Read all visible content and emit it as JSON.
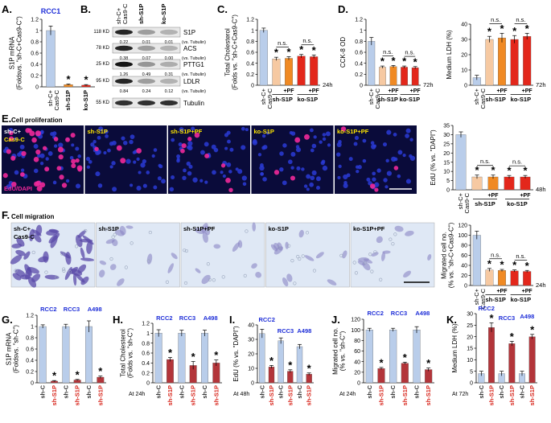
{
  "colors": {
    "blue_light": "#b9cdea",
    "blue_mid": "#7fa3d8",
    "orange_light": "#f6c9a2",
    "orange": "#f08a24",
    "red": "#e3271b",
    "dark_red": "#b3353a",
    "label_blue": "#1f2fd8",
    "label_red": "#d8261c",
    "micro_bg": "#0a0b3a",
    "migration_bg": "#dfe8f5"
  },
  "panels": {
    "A": {
      "letter": "A.",
      "cell_line": "RCC1",
      "ylabel": "S1P mRNA\n(Foldsvs. \"sh-C+Cas9-C\")",
      "categories": [
        "sh-C+\nCas9-C",
        "sh-S1P",
        "ko-S1P"
      ],
      "values": [
        1.0,
        0.04,
        0.03
      ],
      "errors": [
        0.08,
        0.01,
        0.01
      ],
      "ylim": [
        0,
        1.2
      ],
      "yticks": [
        "0",
        "0.2",
        "0.4",
        "0.6",
        "0.8",
        "1",
        "1.2"
      ],
      "stars": [
        "",
        "*",
        "*"
      ]
    },
    "B": {
      "letter": "B.",
      "headers": [
        "sh-C+\nCas9-C",
        "sh-S1P",
        "ko-S1P"
      ],
      "bands": [
        {
          "mw": "118 KD",
          "name": "S1P",
          "values": [
            "0.22",
            "0.01",
            "0.01"
          ],
          "note": "(vs. Tubulin)"
        },
        {
          "mw": "78 KD",
          "name": "ACS",
          "values": [
            "0.38",
            "0.07",
            "0.00"
          ],
          "note": "(vs. Tubulin)"
        },
        {
          "mw": "25 KD",
          "name": "PTTG1",
          "values": [
            "1.26",
            "0.49",
            "0.31"
          ],
          "note": "(vs. Tubulin)"
        },
        {
          "mw": "95 KD",
          "name": "LDLR",
          "values": [
            "0.84",
            "0.24",
            "0.12"
          ],
          "note": "(vs. Tubulin)"
        },
        {
          "mw": "55 KD",
          "name": "Tubulin",
          "values": [],
          "note": ""
        }
      ]
    },
    "C": {
      "letter": "C.",
      "ylabel": "Total Cholesterol\n(Folds vs. \"sh-C+Cas9-C\")",
      "values": [
        1.0,
        0.48,
        0.49,
        0.53,
        0.52
      ],
      "errors": [
        0.04,
        0.03,
        0.03,
        0.03,
        0.03
      ],
      "ylim": [
        0,
        1.2
      ],
      "yticks": [
        "0",
        "0.2",
        "0.4",
        "0.6",
        "0.8",
        "1",
        "1.2"
      ],
      "stars": [
        "",
        "*",
        "*",
        "*",
        "*"
      ],
      "ns": [
        "n.s.",
        "n.s."
      ],
      "pf": [
        "+PF",
        "+PF"
      ],
      "groups": [
        "sh-S1P",
        "ko-S1P"
      ],
      "first": "sh-C+\nCas9-C",
      "time": "24h"
    },
    "D1": {
      "letter": "D.",
      "ylabel": "CCK-8 OD",
      "values": [
        0.8,
        0.33,
        0.34,
        0.33,
        0.32
      ],
      "errors": [
        0.07,
        0.02,
        0.02,
        0.02,
        0.02
      ],
      "ylim": [
        0,
        1.2
      ],
      "yticks": [
        "0",
        "0.2",
        "0.4",
        "0.6",
        "0.8",
        "1",
        "1.2"
      ],
      "stars": [
        "",
        "*",
        "*",
        "*",
        "*"
      ],
      "ns": [
        "n.s.",
        "n.s."
      ],
      "pf": [
        "+PF",
        "+PF"
      ],
      "groups": [
        "sh-S1P",
        "ko-S1P"
      ],
      "first": "sh-C+\nCas9-C",
      "time": "72h"
    },
    "D2": {
      "ylabel": "Medium LDH (%)",
      "values": [
        5,
        30,
        31,
        30,
        32
      ],
      "errors": [
        1.5,
        2,
        3,
        2.5,
        2
      ],
      "ylim": [
        0,
        40
      ],
      "yticks": [
        "0",
        "10",
        "20",
        "30",
        "40"
      ],
      "stars": [
        "",
        "*",
        "*",
        "*",
        "*"
      ],
      "ns": [
        "n.s.",
        "n.s."
      ],
      "pf": [
        "+PF",
        "+PF"
      ],
      "groups": [
        "sh-S1P",
        "ko-S1P"
      ],
      "first": "sh-C+\nCas9-C",
      "time": "72h"
    },
    "E": {
      "letter": "E.",
      "title": "Cell proliferation",
      "images": [
        "sh-C+\nCas9-C",
        "sh-S1P",
        "sh-S1P+PF",
        "ko-S1P",
        "ko-S1P+PF"
      ],
      "stain": "EdU/DAPI",
      "chart": {
        "ylabel": "EdU (% vs. \"DAPI\")",
        "values": [
          30,
          7,
          7,
          7,
          7
        ],
        "errors": [
          1.5,
          1,
          1,
          0.8,
          0.8
        ],
        "ylim": [
          0,
          35
        ],
        "yticks": [
          "0",
          "5",
          "10",
          "15",
          "20",
          "25",
          "30",
          "35"
        ],
        "stars": [
          "",
          "*",
          "*",
          "*",
          "*"
        ],
        "ns": [
          "n.s.",
          "n.s."
        ],
        "pf": [
          "+PF",
          "+PF"
        ],
        "groups": [
          "sh-S1P",
          "ko-S1P"
        ],
        "first": "sh-C+\nCas9-C",
        "time": "48h"
      }
    },
    "F": {
      "letter": "F.",
      "title": "Cell migration",
      "images": [
        "sh-C+\nCas9-C",
        "sh-S1P",
        "sh-S1P+PF",
        "ko-S1P",
        "ko-S1P+PF"
      ],
      "chart": {
        "ylabel": "Migrated cell no.\n(% vs. \"sh-C+Cas9-C\")",
        "values": [
          100,
          31,
          30,
          29,
          28
        ],
        "errors": [
          8,
          3,
          2,
          2,
          2
        ],
        "ylim": [
          0,
          120
        ],
        "yticks": [
          "0",
          "20",
          "40",
          "60",
          "80",
          "100",
          "120"
        ],
        "stars": [
          "",
          "*",
          "*",
          "*",
          "*"
        ],
        "ns": [
          "n.s.",
          "n.s."
        ],
        "pf": [
          "+PF",
          "+PF"
        ],
        "groups": [
          "sh-S1P",
          "ko-S1P"
        ],
        "first": "sh-C+\nCas9-C",
        "time": "24h"
      }
    },
    "G": {
      "letter": "G.",
      "ylabel": "S1P mRNA\n(Foldsvs. \"sh-C\")",
      "lines": [
        "RCC2",
        "RCC3",
        "A498"
      ],
      "values": [
        1.0,
        0.03,
        1.0,
        0.05,
        1.0,
        0.1
      ],
      "errors": [
        0.03,
        0.01,
        0.04,
        0.01,
        0.1,
        0.02
      ],
      "ylim": [
        0,
        1.2
      ],
      "yticks": [
        "0",
        "0.2",
        "0.4",
        "0.6",
        "0.8",
        "1",
        "1.2"
      ],
      "stars": [
        "",
        "*",
        "",
        "*",
        "",
        "*"
      ],
      "xlabels": [
        "sh-C",
        "sh-S1P",
        "sh-C",
        "sh-S1P",
        "sh-C",
        "sh-S1P"
      ],
      "time": ""
    },
    "H": {
      "letter": "H.",
      "ylabel": "Total Cholesterol\n(Folds vs. \"sh-C\")",
      "lines": [
        "RCC2",
        "RCC3",
        "A498"
      ],
      "values": [
        1.0,
        0.47,
        1.0,
        0.35,
        1.0,
        0.4
      ],
      "errors": [
        0.07,
        0.04,
        0.06,
        0.08,
        0.06,
        0.06
      ],
      "ylim": [
        0,
        1.2
      ],
      "yticks": [
        "0",
        "0.2",
        "0.4",
        "0.6",
        "0.8",
        "1",
        "1.2"
      ],
      "stars": [
        "",
        "*",
        "",
        "*",
        "",
        "*"
      ],
      "xlabels": [
        "sh-C",
        "sh-S1P",
        "sh-C",
        "sh-S1P",
        "sh-C",
        "sh-S1P"
      ],
      "time": "At 24h"
    },
    "I": {
      "letter": "I.",
      "ylabel": "EdU (% vs. \"DAPI\")",
      "lines": [
        "RCC2",
        "RCC3",
        "A498"
      ],
      "values": [
        34,
        11,
        29,
        8,
        25,
        6
      ],
      "errors": [
        3,
        1,
        2,
        1,
        1.5,
        0.8
      ],
      "ylim": [
        0,
        40
      ],
      "yticks": [
        "0",
        "10",
        "20",
        "30",
        "40"
      ],
      "stars": [
        "",
        "*",
        "",
        "*",
        "",
        "*"
      ],
      "xlabels": [
        "sh-C",
        "sh-S1P",
        "sh-C",
        "sh-S1P",
        "sh-C",
        "sh-S1P"
      ],
      "time": "At 48h"
    },
    "J": {
      "letter": "J.",
      "ylabel": "Migrated cell no.\n(% vs. \"sh-C\")",
      "lines": [
        "RCC2",
        "RCC3",
        "A498"
      ],
      "values": [
        100,
        27,
        100,
        37,
        100,
        25
      ],
      "errors": [
        3,
        2,
        3,
        2,
        6,
        3
      ],
      "ylim": [
        0,
        120
      ],
      "yticks": [
        "0",
        "20",
        "40",
        "60",
        "80",
        "100",
        "120"
      ],
      "stars": [
        "",
        "*",
        "",
        "*",
        "",
        "*"
      ],
      "xlabels": [
        "sh-C",
        "sh-S1P",
        "sh-C",
        "sh-S1P",
        "sh-C",
        "sh-S1P"
      ],
      "time": "At 24h"
    },
    "K": {
      "letter": "K.",
      "ylabel": "Medium LDH (%)",
      "lines": [
        "RCC2",
        "RCC3",
        "A498"
      ],
      "values": [
        4,
        24,
        4,
        17,
        4,
        20
      ],
      "errors": [
        1,
        2,
        1,
        1,
        1,
        1
      ],
      "ylim": [
        0,
        30
      ],
      "yticks": [
        "0",
        "5",
        "10",
        "15",
        "20",
        "25",
        "30"
      ],
      "stars": [
        "",
        "*",
        "",
        "*",
        "",
        "*"
      ],
      "xlabels": [
        "sh-C",
        "sh-S1P",
        "sh-C",
        "sh-S1P",
        "sh-C",
        "sh-S1P"
      ],
      "time": "At 72h"
    }
  },
  "chart_data": [
    {
      "type": "bar",
      "categories": [
        "sh-C+Cas9-C",
        "sh-S1P",
        "ko-S1P"
      ],
      "values": [
        1.0,
        0.04,
        0.03
      ],
      "ylabel": "S1P mRNA (Foldsvs. \"sh-C+Cas9-C\")",
      "ylim": [
        0,
        1.2
      ]
    },
    {
      "type": "bar",
      "categories": [
        "sh-C+Cas9-C",
        "sh-S1P",
        "sh-S1P +PF",
        "ko-S1P",
        "ko-S1P +PF"
      ],
      "values": [
        1.0,
        0.48,
        0.49,
        0.53,
        0.52
      ],
      "ylabel": "Total Cholesterol (Folds vs. \"sh-C+Cas9-C\")",
      "ylim": [
        0,
        1.2
      ]
    },
    {
      "type": "bar",
      "categories": [
        "sh-C+Cas9-C",
        "sh-S1P",
        "sh-S1P +PF",
        "ko-S1P",
        "ko-S1P +PF"
      ],
      "values": [
        0.8,
        0.33,
        0.34,
        0.33,
        0.32
      ],
      "ylabel": "CCK-8 OD",
      "ylim": [
        0,
        1.2
      ]
    },
    {
      "type": "bar",
      "categories": [
        "sh-C+Cas9-C",
        "sh-S1P",
        "sh-S1P +PF",
        "ko-S1P",
        "ko-S1P +PF"
      ],
      "values": [
        5,
        30,
        31,
        30,
        32
      ],
      "ylabel": "Medium LDH (%)",
      "ylim": [
        0,
        40
      ]
    },
    {
      "type": "bar",
      "categories": [
        "sh-C+Cas9-C",
        "sh-S1P",
        "sh-S1P +PF",
        "ko-S1P",
        "ko-S1P +PF"
      ],
      "values": [
        30,
        7,
        7,
        7,
        7
      ],
      "ylabel": "EdU (% vs. \"DAPI\")",
      "ylim": [
        0,
        35
      ]
    },
    {
      "type": "bar",
      "categories": [
        "sh-C+Cas9-C",
        "sh-S1P",
        "sh-S1P +PF",
        "ko-S1P",
        "ko-S1P +PF"
      ],
      "values": [
        100,
        31,
        30,
        29,
        28
      ],
      "ylabel": "Migrated cell no. (% vs. \"sh-C+Cas9-C\")",
      "ylim": [
        0,
        120
      ]
    },
    {
      "type": "bar",
      "categories": [
        "RCC2 sh-C",
        "RCC2 sh-S1P",
        "RCC3 sh-C",
        "RCC3 sh-S1P",
        "A498 sh-C",
        "A498 sh-S1P"
      ],
      "values": [
        1.0,
        0.03,
        1.0,
        0.05,
        1.0,
        0.1
      ],
      "ylabel": "S1P mRNA (Foldsvs. \"sh-C\")",
      "ylim": [
        0,
        1.2
      ]
    },
    {
      "type": "bar",
      "categories": [
        "RCC2 sh-C",
        "RCC2 sh-S1P",
        "RCC3 sh-C",
        "RCC3 sh-S1P",
        "A498 sh-C",
        "A498 sh-S1P"
      ],
      "values": [
        1.0,
        0.47,
        1.0,
        0.35,
        1.0,
        0.4
      ],
      "ylabel": "Total Cholesterol (Folds vs. \"sh-C\")",
      "ylim": [
        0,
        1.2
      ]
    },
    {
      "type": "bar",
      "categories": [
        "RCC2 sh-C",
        "RCC2 sh-S1P",
        "RCC3 sh-C",
        "RCC3 sh-S1P",
        "A498 sh-C",
        "A498 sh-S1P"
      ],
      "values": [
        34,
        11,
        29,
        8,
        25,
        6
      ],
      "ylabel": "EdU (% vs. \"DAPI\")",
      "ylim": [
        0,
        40
      ]
    },
    {
      "type": "bar",
      "categories": [
        "RCC2 sh-C",
        "RCC2 sh-S1P",
        "RCC3 sh-C",
        "RCC3 sh-S1P",
        "A498 sh-C",
        "A498 sh-S1P"
      ],
      "values": [
        100,
        27,
        100,
        37,
        100,
        25
      ],
      "ylabel": "Migrated cell no. (% vs. \"sh-C\")",
      "ylim": [
        0,
        120
      ]
    },
    {
      "type": "bar",
      "categories": [
        "RCC2 sh-C",
        "RCC2 sh-S1P",
        "RCC3 sh-C",
        "RCC3 sh-S1P",
        "A498 sh-C",
        "A498 sh-S1P"
      ],
      "values": [
        4,
        24,
        4,
        17,
        4,
        20
      ],
      "ylabel": "Medium LDH (%)",
      "ylim": [
        0,
        30
      ]
    }
  ]
}
